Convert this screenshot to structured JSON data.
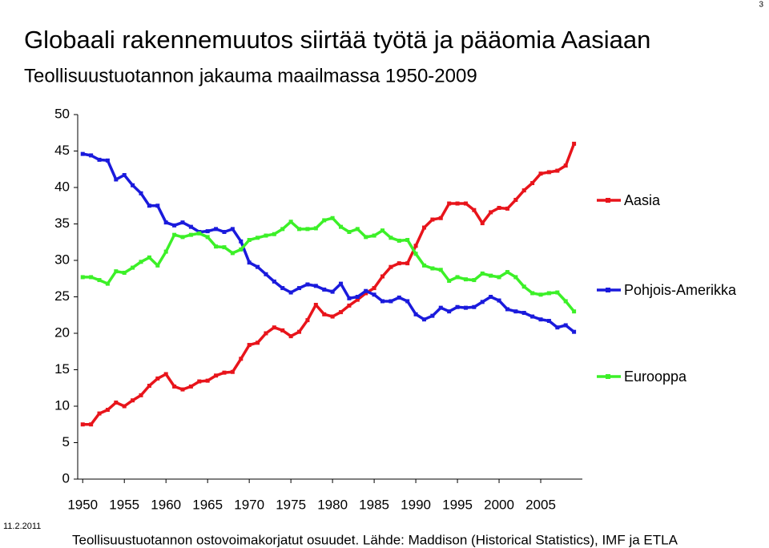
{
  "page_number": "3",
  "date": "11.2.2011",
  "footnote": "Teollisuustuotannon ostovoimakorjatut osuudet. Lähde: Maddison (Historical Statistics), IMF ja ETLA",
  "chart_data": {
    "type": "line",
    "title": "Globaali rakennemuutos siirtää työtä ja pääomia Aasiaan",
    "subtitle": "Teollisuustuotannon jakauma maailmassa 1950-2009",
    "x": [
      1950,
      1951,
      1952,
      1953,
      1954,
      1955,
      1956,
      1957,
      1958,
      1959,
      1960,
      1961,
      1962,
      1963,
      1964,
      1965,
      1966,
      1967,
      1968,
      1969,
      1970,
      1971,
      1972,
      1973,
      1974,
      1975,
      1976,
      1977,
      1978,
      1979,
      1980,
      1981,
      1982,
      1983,
      1984,
      1985,
      1986,
      1987,
      1988,
      1989,
      1990,
      1991,
      1992,
      1993,
      1994,
      1995,
      1996,
      1997,
      1998,
      1999,
      2000,
      2001,
      2002,
      2003,
      2004,
      2005,
      2006,
      2007,
      2008,
      2009
    ],
    "xlim": [
      1949.4,
      2010
    ],
    "xticks": [
      1950,
      1955,
      1960,
      1965,
      1970,
      1975,
      1980,
      1985,
      1990,
      1995,
      2000,
      2005
    ],
    "ylim": [
      0,
      50
    ],
    "yticks": [
      0,
      5,
      10,
      15,
      20,
      25,
      30,
      35,
      40,
      45,
      50
    ],
    "grid": false,
    "legend": "right",
    "series": [
      {
        "name": "Aasia",
        "color": "#e8141b",
        "values": [
          7.5,
          7.5,
          9,
          9.5,
          10.5,
          10,
          10.8,
          11.5,
          12.8,
          13.8,
          14.4,
          12.7,
          12.3,
          12.7,
          13.4,
          13.5,
          14.2,
          14.6,
          14.7,
          16.5,
          18.4,
          18.7,
          20,
          20.8,
          20.4,
          19.6,
          20.2,
          21.8,
          23.9,
          22.6,
          22.3,
          22.9,
          23.8,
          24.6,
          25.5,
          26.2,
          27.8,
          29.1,
          29.6,
          29.6,
          32,
          34.5,
          35.6,
          35.8,
          37.8,
          37.8,
          37.8,
          36.9,
          35.1,
          36.6,
          37.2,
          37.1,
          38.3,
          39.6,
          40.6,
          41.9,
          42.1,
          42.3,
          43,
          46
        ]
      },
      {
        "name": "Pohjois-Amerikka",
        "color": "#1a1adc",
        "values": [
          44.6,
          44.4,
          43.8,
          43.7,
          41.1,
          41.7,
          40.3,
          39.2,
          37.5,
          37.5,
          35.2,
          34.8,
          35.2,
          34.6,
          33.9,
          34,
          34.3,
          33.9,
          34.3,
          32.6,
          29.7,
          29.1,
          28.1,
          27.1,
          26.2,
          25.6,
          26.2,
          26.7,
          26.5,
          26,
          25.7,
          26.8,
          24.8,
          25,
          25.8,
          25.3,
          24.4,
          24.4,
          24.9,
          24.4,
          22.6,
          21.9,
          22.4,
          23.5,
          23,
          23.6,
          23.5,
          23.6,
          24.3,
          25,
          24.5,
          23.3,
          23,
          22.8,
          22.3,
          21.9,
          21.7,
          20.8,
          21.1,
          20.2
        ]
      },
      {
        "name": "Eurooppa",
        "color": "#3cf028",
        "values": [
          27.7,
          27.7,
          27.3,
          26.8,
          28.5,
          28.3,
          29,
          29.8,
          30.4,
          29.3,
          31.2,
          33.5,
          33.2,
          33.5,
          33.7,
          33.2,
          31.9,
          31.8,
          31,
          31.5,
          32.8,
          33.1,
          33.4,
          33.6,
          34.3,
          35.3,
          34.3,
          34.3,
          34.4,
          35.5,
          35.8,
          34.6,
          33.9,
          34.3,
          33.2,
          33.4,
          34.1,
          33.1,
          32.7,
          32.8,
          30.9,
          29.3,
          28.9,
          28.7,
          27.2,
          27.7,
          27.4,
          27.3,
          28.2,
          27.9,
          27.7,
          28.4,
          27.7,
          26.4,
          25.5,
          25.3,
          25.5,
          25.6,
          24.4,
          23
        ]
      }
    ]
  }
}
